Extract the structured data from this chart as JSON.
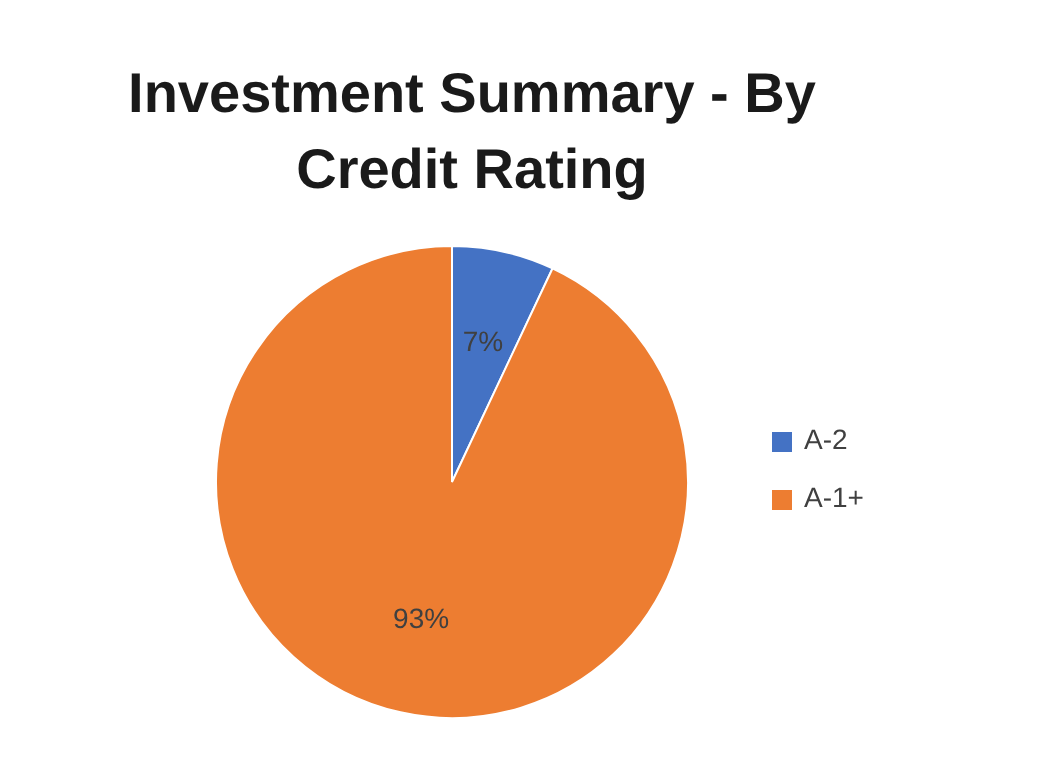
{
  "chart_data": {
    "type": "pie",
    "title": "Investment Summary - By Credit Rating",
    "categories": [
      "A-2",
      "A-1+"
    ],
    "values": [
      7,
      93
    ],
    "colors": [
      "#4472c4",
      "#ed7d31"
    ],
    "value_labels": [
      "7%",
      "93%"
    ],
    "legend": "right"
  }
}
